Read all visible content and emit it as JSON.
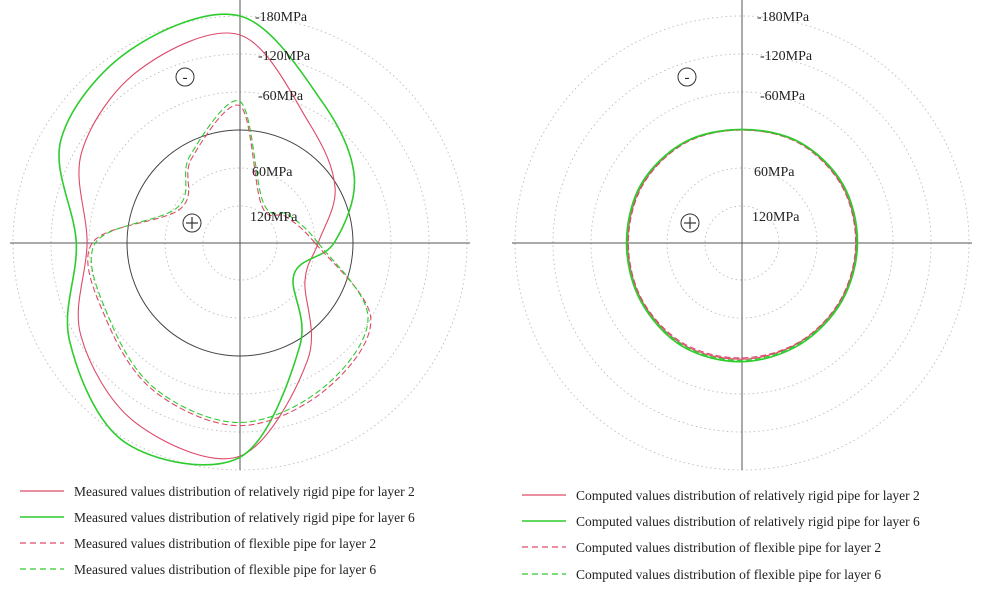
{
  "chart_data": [
    {
      "type": "polar-line",
      "title": "",
      "radial_axis": {
        "min": -240,
        "max": 120,
        "unit": "MPa",
        "grid": "dotted"
      },
      "radial_ticks": [
        "-180MPa",
        "-120MPa",
        "-60MPa",
        "60MPa",
        "120MPa"
      ],
      "sign_markers": {
        "negative": "-",
        "positive": "+"
      },
      "zero_circle": true,
      "angles_deg": [
        0,
        30,
        60,
        90,
        120,
        150,
        180,
        210,
        240,
        270,
        300,
        330
      ],
      "series": [
        {
          "name": "Measured values distribution of relatively rigid pipe for layer 2",
          "color": "#dd4a6a",
          "dash": "solid",
          "values": [
            55,
            5,
            -40,
            -150,
            -138,
            -110,
            -63,
            -112,
            -150,
            -158,
            -35,
            60
          ]
        },
        {
          "name": "Measured values distribution of relatively rigid pipe for layer 6",
          "color": "#2ecc2e",
          "dash": "solid",
          "values": [
            30,
            -30,
            -80,
            -180,
            -172,
            -148,
            -80,
            -132,
            -185,
            -160,
            -10,
            80
          ]
        },
        {
          "name": "Measured values distribution of flexible pipe for layer 2",
          "color": "#dd4a6a",
          "dash": "dashed",
          "values": [
            60,
            95,
            110,
            -38,
            25,
            70,
            -55,
            -65,
            -92,
            -110,
            -90,
            -60
          ]
        },
        {
          "name": "Measured values distribution of flexible pipe for layer 6",
          "color": "#2ecc2e",
          "dash": "dashed",
          "values": [
            55,
            90,
            105,
            -45,
            20,
            65,
            -50,
            -60,
            -88,
            -105,
            -85,
            -55
          ]
        }
      ]
    },
    {
      "type": "polar-line",
      "title": "",
      "radial_axis": {
        "min": -240,
        "max": 120,
        "unit": "MPa",
        "grid": "dotted"
      },
      "radial_ticks": [
        "-180MPa",
        "-120MPa",
        "-60MPa",
        "60MPa",
        "120MPa"
      ],
      "sign_markers": {
        "negative": "-",
        "positive": "+"
      },
      "zero_circle": false,
      "angles_deg": [
        0,
        30,
        60,
        90,
        120,
        150,
        180,
        210,
        240,
        270,
        300,
        330
      ],
      "series": [
        {
          "name": "Computed values distribution of relatively rigid pipe for layer 2",
          "color": "#dd4a6a",
          "dash": "solid",
          "values": [
            -2,
            -4,
            -4,
            0,
            -4,
            -4,
            -2,
            -4,
            -7,
            -5,
            -3,
            -2
          ]
        },
        {
          "name": "Computed values distribution of relatively rigid pipe for layer 6",
          "color": "#2ecc2e",
          "dash": "solid",
          "values": [
            -4,
            -6,
            -5,
            -1,
            -5,
            -6,
            -4,
            -6,
            -10,
            -9,
            -6,
            -4
          ]
        },
        {
          "name": "Computed values distribution of flexible pipe for layer 2",
          "color": "#dd4a6a",
          "dash": "dashed",
          "values": [
            -1,
            -3,
            -3,
            0,
            -3,
            -3,
            -1,
            -3,
            -5,
            -3,
            -2,
            -1
          ]
        },
        {
          "name": "Computed values distribution of flexible pipe for layer 6",
          "color": "#2ecc2e",
          "dash": "dashed",
          "values": [
            -3,
            -5,
            -4,
            0,
            -4,
            -5,
            -3,
            -5,
            -8,
            -7,
            -4,
            -3
          ]
        }
      ]
    }
  ]
}
